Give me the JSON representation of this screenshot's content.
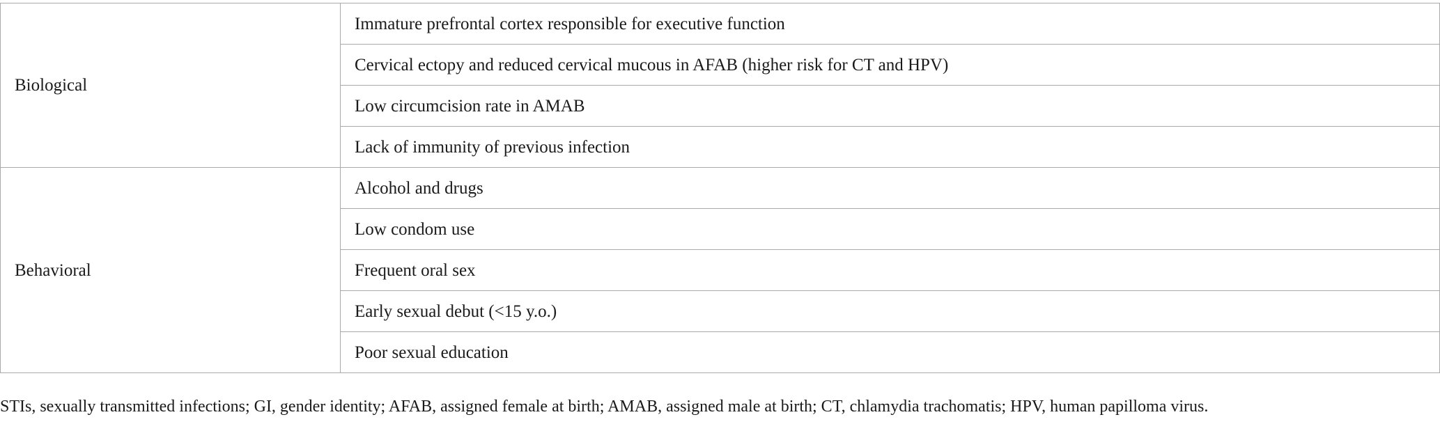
{
  "table": {
    "groups": [
      {
        "category": "Biological",
        "factors": [
          "Immature prefrontal cortex responsible for executive function",
          "Cervical ectopy and reduced cervical mucous in AFAB (higher risk for CT and HPV)",
          "Low circumcision rate in AMAB",
          "Lack of immunity of previous infection"
        ]
      },
      {
        "category": "Behavioral",
        "factors": [
          "Alcohol and drugs",
          "Low condom use",
          "Frequent oral sex",
          "Early sexual debut (<15 y.o.)",
          "Poor sexual education"
        ]
      }
    ]
  },
  "footnote": "STIs, sexually transmitted infections; GI, gender identity; AFAB, assigned female at birth; AMAB, assigned male at birth; CT, chlamydia trachomatis; HPV, human papilloma virus."
}
